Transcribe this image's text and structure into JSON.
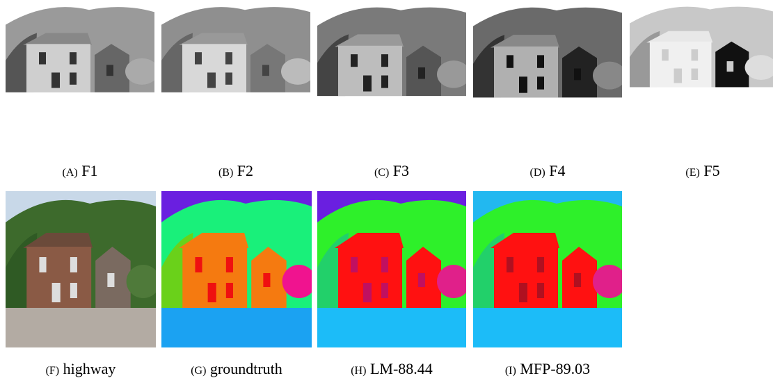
{
  "panels": [
    {
      "tag": "(A)",
      "text": "F1"
    },
    {
      "tag": "(B)",
      "text": "F2"
    },
    {
      "tag": "(C)",
      "text": "F3"
    },
    {
      "tag": "(D)",
      "text": "F4"
    },
    {
      "tag": "(E)",
      "text": "F5"
    },
    {
      "tag": "(F)",
      "text": "highway"
    },
    {
      "tag": "(G)",
      "text": "groundtruth"
    },
    {
      "tag": "(H)",
      "text": "LM-88.44"
    },
    {
      "tag": "(I)",
      "text": "MFP-89.03"
    }
  ]
}
